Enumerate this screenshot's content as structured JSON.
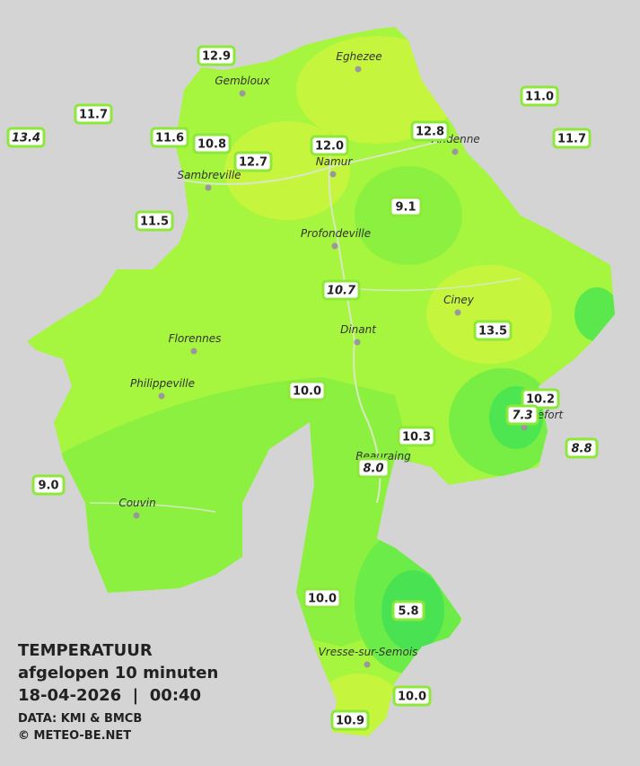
{
  "title": "TEMPERATUUR",
  "subtitle": "afgelopen 10 minuten",
  "datetime": "18-04-2026  |  00:40",
  "source": "DATA: KMI & BMCB",
  "credit": "© METEO-BE.NET",
  "cities": [
    "Eghezee",
    "Gembloux",
    "Andenne",
    "Namur",
    "Sambreville",
    "Profondeville",
    "Ciney",
    "Dinant",
    "Florennes",
    "Philippeville",
    "Rochefort",
    "Beauraing",
    "Couvin",
    "Vresse-sur-Semois"
  ],
  "stations": [
    {
      "label": "12.9",
      "italic": false
    },
    {
      "label": "11.7",
      "italic": false
    },
    {
      "label": "13.4",
      "italic": true
    },
    {
      "label": "11.6",
      "italic": false
    },
    {
      "label": "10.8",
      "italic": false
    },
    {
      "label": "12.7",
      "italic": false
    },
    {
      "label": "12.0",
      "italic": false
    },
    {
      "label": "12.8",
      "italic": false
    },
    {
      "label": "11.0",
      "italic": false
    },
    {
      "label": "11.7",
      "italic": false
    },
    {
      "label": "11.5",
      "italic": false
    },
    {
      "label": "9.1",
      "italic": false
    },
    {
      "label": "10.7",
      "italic": true
    },
    {
      "label": "13.5",
      "italic": false
    },
    {
      "label": "10.0",
      "italic": false
    },
    {
      "label": "10.2",
      "italic": false
    },
    {
      "label": "7.3",
      "italic": true
    },
    {
      "label": "8.8",
      "italic": true
    },
    {
      "label": "10.3",
      "italic": false
    },
    {
      "label": "8.0",
      "italic": true
    },
    {
      "label": "9.0",
      "italic": false
    },
    {
      "label": "10.0",
      "italic": false
    },
    {
      "label": "5.8",
      "italic": false
    },
    {
      "label": "10.0",
      "italic": false
    },
    {
      "label": "10.9",
      "italic": false
    }
  ]
}
